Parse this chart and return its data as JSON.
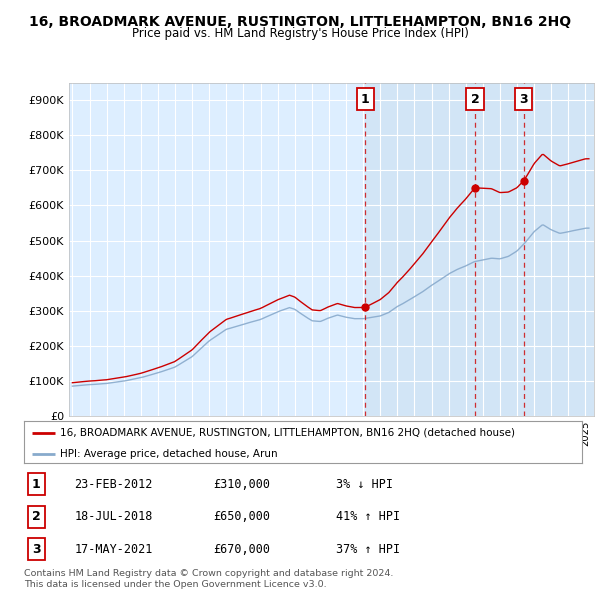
{
  "title": "16, BROADMARK AVENUE, RUSTINGTON, LITTLEHAMPTON, BN16 2HQ",
  "subtitle": "Price paid vs. HM Land Registry's House Price Index (HPI)",
  "legend_line1": "16, BROADMARK AVENUE, RUSTINGTON, LITTLEHAMPTON, BN16 2HQ (detached house)",
  "legend_line2": "HPI: Average price, detached house, Arun",
  "line_color_property": "#cc0000",
  "line_color_hpi": "#88aacc",
  "shade_color": "#cce0f0",
  "background_color": "#ddeeff",
  "transactions": [
    {
      "num": 1,
      "date": "23-FEB-2012",
      "price": 310000,
      "pct": "3%",
      "dir": "↓",
      "x": 2012.13
    },
    {
      "num": 2,
      "date": "18-JUL-2018",
      "price": 650000,
      "pct": "41%",
      "dir": "↑",
      "x": 2018.54
    },
    {
      "num": 3,
      "date": "17-MAY-2021",
      "price": 670000,
      "pct": "37%",
      "dir": "↑",
      "x": 2021.38
    }
  ],
  "footer": "Contains HM Land Registry data © Crown copyright and database right 2024.\nThis data is licensed under the Open Government Licence v3.0.",
  "ylim": [
    0,
    950000
  ],
  "xlim": [
    1994.8,
    2025.5
  ]
}
